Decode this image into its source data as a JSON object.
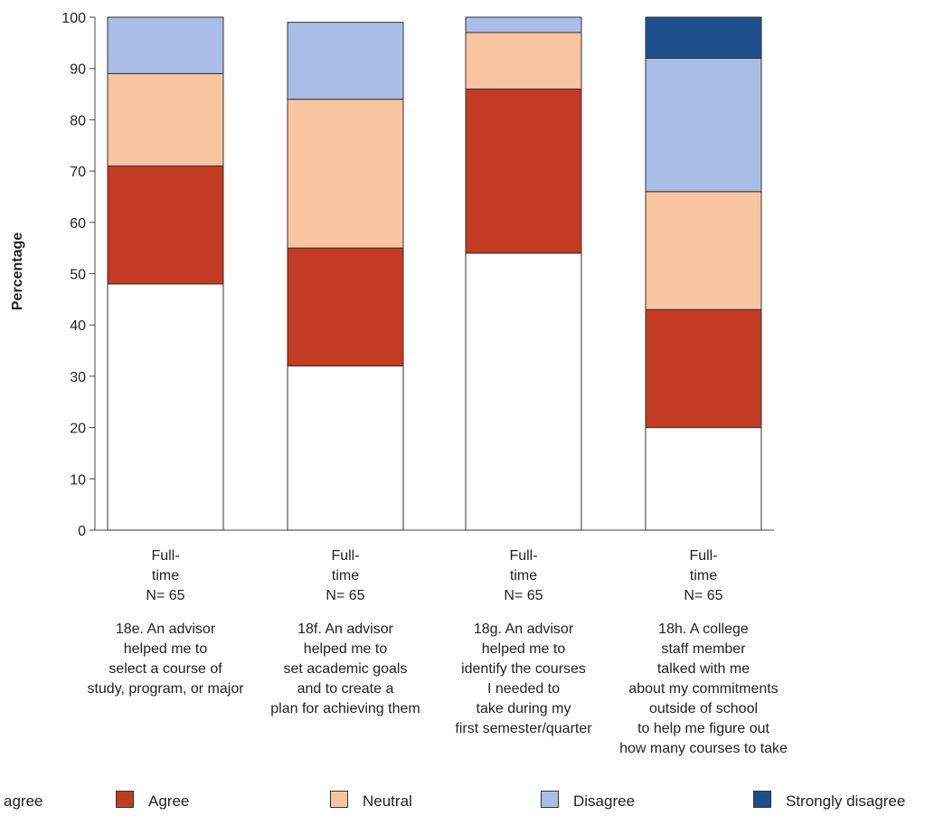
{
  "chart_data": {
    "type": "bar",
    "stacked": true,
    "ylabel": "Percentage",
    "ylim": [
      0,
      100
    ],
    "yticks": [
      0,
      10,
      20,
      30,
      40,
      50,
      60,
      70,
      80,
      90,
      100
    ],
    "grid": false,
    "legend_position": "bottom",
    "categories": [
      {
        "group_lines": [
          "Full-",
          "time",
          "N= 65"
        ],
        "item_lines": [
          "18e. An advisor",
          "helped me to",
          "select a course of",
          "study, program, or major"
        ]
      },
      {
        "group_lines": [
          "Full-",
          "time",
          "N= 65"
        ],
        "item_lines": [
          "18f. An advisor",
          "helped me to",
          "set academic goals",
          "and to create a",
          "plan for achieving them"
        ]
      },
      {
        "group_lines": [
          "Full-",
          "time",
          "N= 65"
        ],
        "item_lines": [
          "18g. An advisor",
          "helped me to",
          "identify the courses",
          "I needed to",
          "take during my",
          "first semester/quarter"
        ]
      },
      {
        "group_lines": [
          "Full-",
          "time",
          "N= 65"
        ],
        "item_lines": [
          "18h. A college",
          "staff member",
          "talked with me",
          "about my commitments",
          "outside of school",
          "to help me figure out",
          "how many courses to take"
        ]
      }
    ],
    "series": [
      {
        "name": "agree",
        "color": "#ffffff",
        "values": [
          48,
          32,
          54,
          20
        ]
      },
      {
        "name": "Agree",
        "color": "#c23b22",
        "values": [
          23,
          23,
          32,
          23
        ]
      },
      {
        "name": "Neutral",
        "color": "#f9c4a0",
        "values": [
          18,
          29,
          11,
          23
        ]
      },
      {
        "name": "Disagree",
        "color": "#a9bde6",
        "values": [
          11,
          15,
          3,
          26
        ]
      },
      {
        "name": "Strongly disagree",
        "color": "#1f4e8c",
        "values": [
          0,
          0,
          0,
          8
        ]
      }
    ]
  }
}
